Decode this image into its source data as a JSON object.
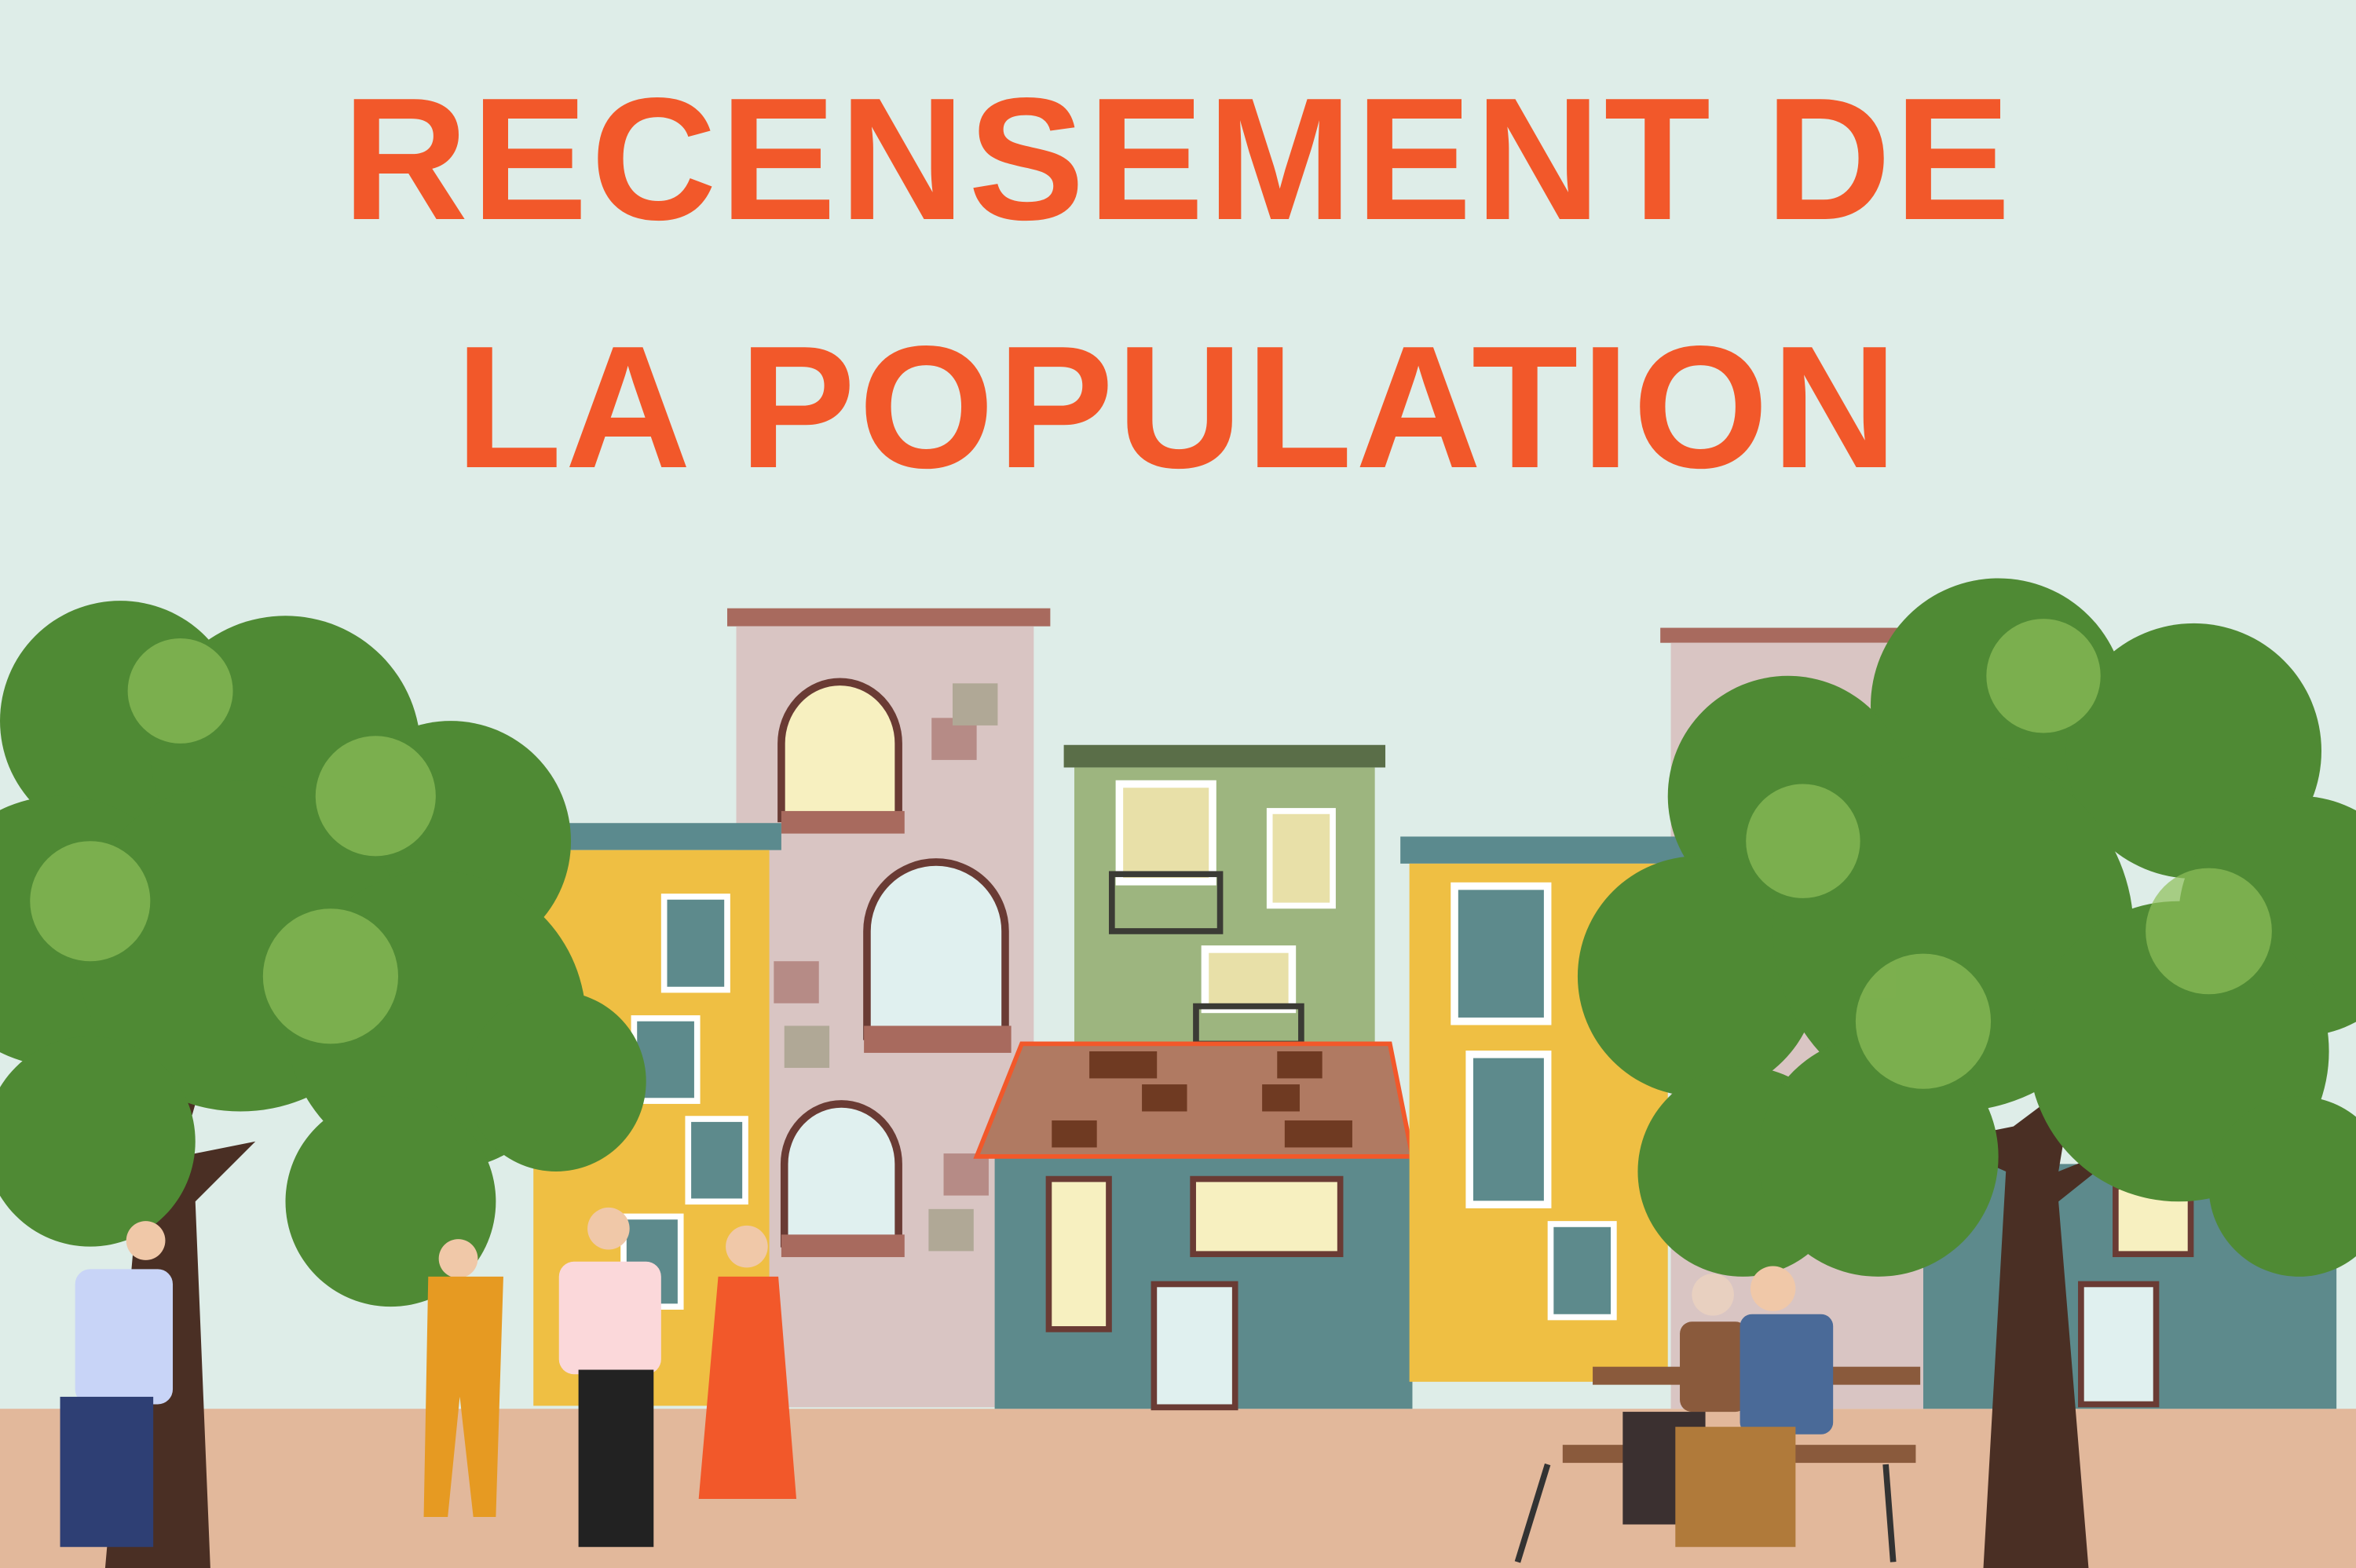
{
  "poster": {
    "title_line1": "RECENSEMENT DE",
    "title_line2": "LA POPULATION"
  },
  "colors": {
    "background": "#deede8",
    "title": "#f2582a",
    "ground": "#e2b89b",
    "building_yellow": "#efbf43",
    "building_pink": "#d9c5c3",
    "building_green": "#9db57f",
    "building_teal": "#5d8a8c",
    "tree_green": "#4f8a34"
  }
}
